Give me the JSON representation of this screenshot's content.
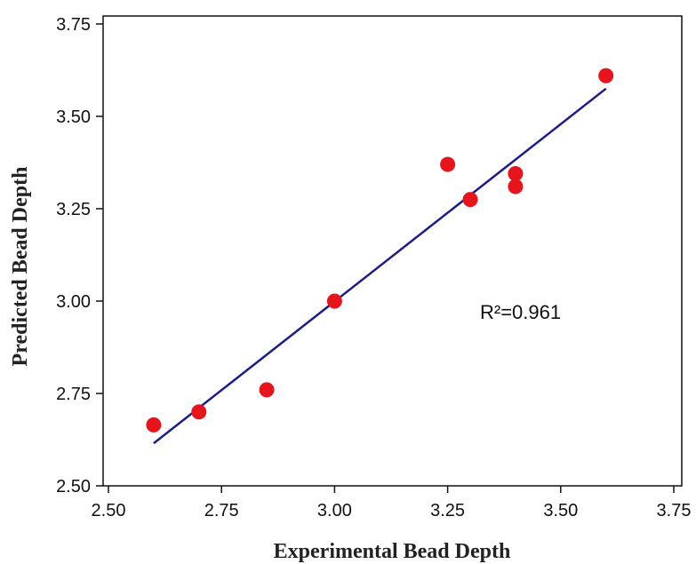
{
  "chart_data": {
    "type": "scatter",
    "title": "",
    "xlabel": "Experimental Bead Depth",
    "ylabel": "Predicted Bead Depth",
    "xlim": [
      2.5,
      3.75
    ],
    "ylim": [
      2.5,
      3.75
    ],
    "x_ticks": [
      "2.50",
      "2.75",
      "3.00",
      "3.25",
      "3.50",
      "3.75"
    ],
    "y_ticks": [
      "2.50",
      "2.75",
      "3.00",
      "3.25",
      "3.50",
      "3.75"
    ],
    "grid": false,
    "legend": "none",
    "point_color": "#e8141b",
    "line_color": "#1c1c8c",
    "points": [
      {
        "x": 2.6,
        "y": 2.665
      },
      {
        "x": 2.7,
        "y": 2.7
      },
      {
        "x": 2.85,
        "y": 2.76
      },
      {
        "x": 3.0,
        "y": 3.0
      },
      {
        "x": 3.25,
        "y": 3.37
      },
      {
        "x": 3.3,
        "y": 3.275
      },
      {
        "x": 3.4,
        "y": 3.345
      },
      {
        "x": 3.4,
        "y": 3.31
      },
      {
        "x": 3.6,
        "y": 3.61
      }
    ],
    "fit_line": {
      "x": [
        2.6,
        3.6
      ],
      "y": [
        2.615,
        3.575
      ]
    },
    "annotation": "R²=0.961"
  }
}
